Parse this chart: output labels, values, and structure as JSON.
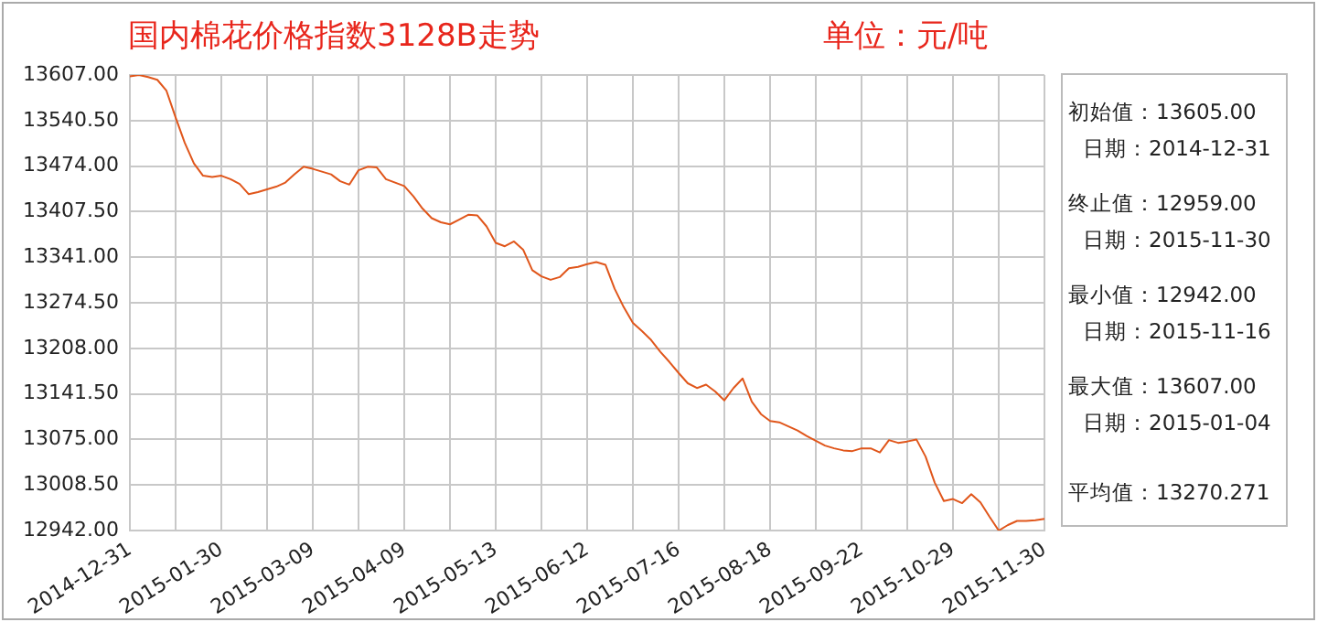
{
  "chart_data": {
    "type": "line",
    "title": "国内棉花价格指数3128B走势",
    "subtitle": "单位：元/吨",
    "categories": [
      "2014-12-31",
      null,
      null,
      null,
      null,
      null,
      null,
      null,
      null,
      null,
      "2015-01-30",
      null,
      null,
      null,
      null,
      null,
      null,
      null,
      null,
      null,
      "2015-03-09",
      null,
      null,
      null,
      null,
      null,
      null,
      null,
      null,
      null,
      "2015-04-09",
      null,
      null,
      null,
      null,
      null,
      null,
      null,
      null,
      null,
      "2015-05-13",
      null,
      null,
      null,
      null,
      null,
      null,
      null,
      null,
      null,
      "2015-06-12",
      null,
      null,
      null,
      null,
      null,
      null,
      null,
      null,
      null,
      "2015-07-16",
      null,
      null,
      null,
      null,
      null,
      null,
      null,
      null,
      null,
      "2015-08-18",
      null,
      null,
      null,
      null,
      null,
      null,
      null,
      null,
      null,
      "2015-09-22",
      null,
      null,
      null,
      null,
      null,
      null,
      null,
      null,
      null,
      "2015-10-29",
      null,
      null,
      null,
      null,
      null,
      null,
      null,
      null,
      null,
      "2015-11-30"
    ],
    "series": [
      {
        "color": "#e0561b",
        "values": [
          13605,
          13607,
          13604,
          13600,
          13584,
          13545,
          13508,
          13478,
          13460,
          13458,
          13460,
          13455,
          13448,
          13433,
          13436,
          13440,
          13444,
          13450,
          13462,
          13473,
          13470,
          13466,
          13462,
          13452,
          13447,
          13468,
          13473,
          13472,
          13455,
          13450,
          13445,
          13430,
          13412,
          13398,
          13392,
          13389,
          13396,
          13403,
          13402,
          13386,
          13362,
          13357,
          13364,
          13352,
          13322,
          13313,
          13308,
          13312,
          13325,
          13327,
          13331,
          13334,
          13330,
          13295,
          13268,
          13245,
          13233,
          13220,
          13203,
          13188,
          13172,
          13157,
          13150,
          13155,
          13145,
          13132,
          13150,
          13164,
          13130,
          13112,
          13102,
          13100,
          13094,
          13088,
          13080,
          13073,
          13066,
          13062,
          13059,
          13058,
          13062,
          13062,
          13056,
          13074,
          13070,
          13072,
          13075,
          13050,
          13012,
          12985,
          12988,
          12982,
          12995,
          12983,
          12962,
          12942,
          12950,
          12956,
          12956,
          12957,
          12959
        ]
      }
    ],
    "ylim": [
      12942,
      13607
    ],
    "yticks": [
      {
        "value": 12942,
        "label": "12942.00"
      },
      {
        "value": 13008.5,
        "label": "13008.50"
      },
      {
        "value": 13075,
        "label": "13075.00"
      },
      {
        "value": 13141.5,
        "label": "13141.50"
      },
      {
        "value": 13208,
        "label": "13208.00"
      },
      {
        "value": 13274.5,
        "label": "13274.50"
      },
      {
        "value": 13341,
        "label": "13341.00"
      },
      {
        "value": 13407.5,
        "label": "13407.50"
      },
      {
        "value": 13474,
        "label": "13474.00"
      },
      {
        "value": 13540.5,
        "label": "13540.50"
      },
      {
        "value": 13607,
        "label": "13607.00"
      }
    ],
    "grid": true,
    "legend": false,
    "marker": "none",
    "line_style": "solid",
    "annotations": [
      "初始值：13605.00",
      "日期：2014-12-31",
      "终止值：12959.00",
      "日期：2015-11-30",
      "最小值：12942.00",
      "日期：2015-11-16",
      "最大值：13607.00",
      "日期：2015-01-04",
      "平均值：13270.271"
    ]
  }
}
